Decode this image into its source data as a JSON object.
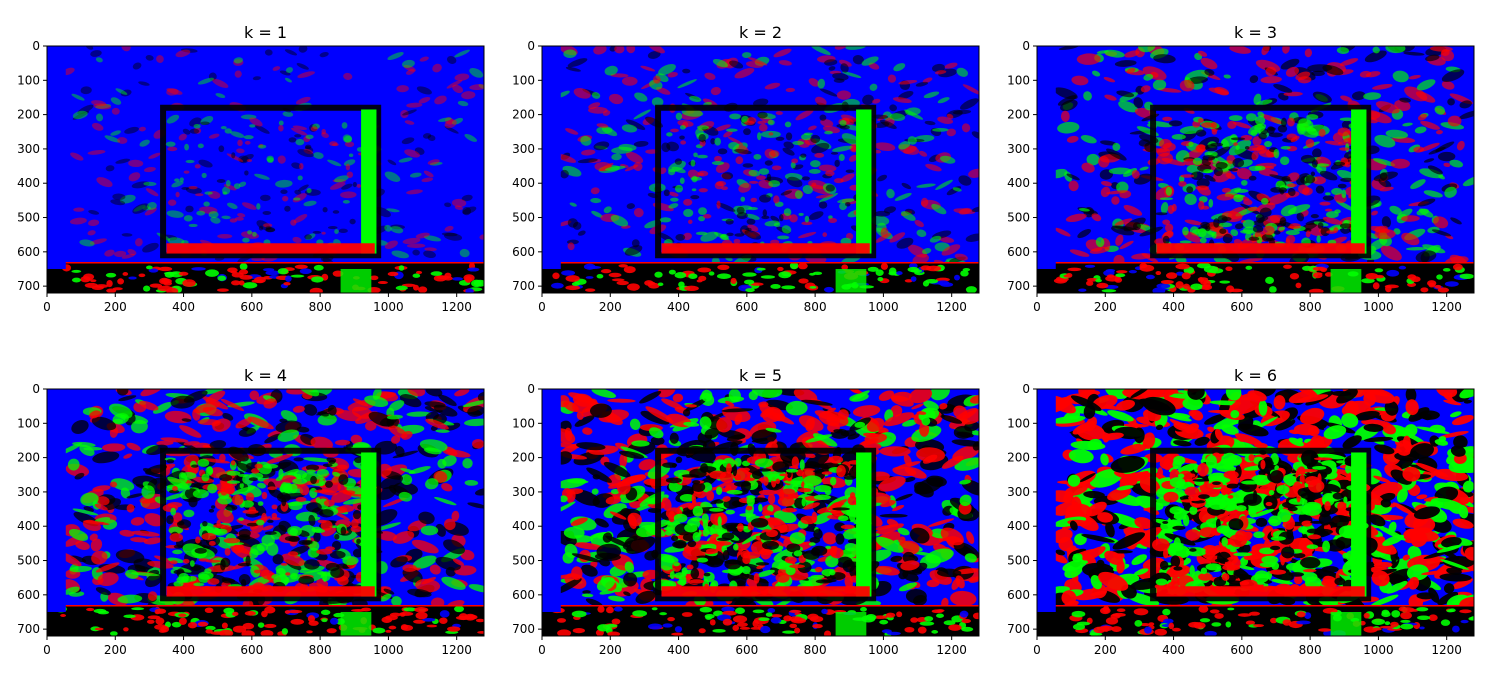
{
  "figure": {
    "panels": [
      {
        "title": "k = 1",
        "level": 1
      },
      {
        "title": "k = 2",
        "level": 2
      },
      {
        "title": "k = 3",
        "level": 3
      },
      {
        "title": "k = 4",
        "level": 4
      },
      {
        "title": "k = 5",
        "level": 5
      },
      {
        "title": "k = 6",
        "level": 6
      }
    ],
    "x_ticks": [
      "0",
      "200",
      "400",
      "600",
      "800",
      "1000",
      "1200"
    ],
    "y_ticks": [
      "0",
      "100",
      "200",
      "300",
      "400",
      "500",
      "600",
      "700"
    ],
    "x_tick_values": [
      0,
      200,
      400,
      600,
      800,
      1000,
      1200
    ],
    "y_tick_values": [
      0,
      100,
      200,
      300,
      400,
      500,
      600,
      700
    ],
    "xlim": [
      0,
      1280
    ],
    "ylim": [
      720,
      0
    ],
    "colors": {
      "background": "#0000ff",
      "edge_red": "#ff0000",
      "edge_green": "#00ff00",
      "shadow": "#000000",
      "frame_text": "#000000"
    }
  }
}
